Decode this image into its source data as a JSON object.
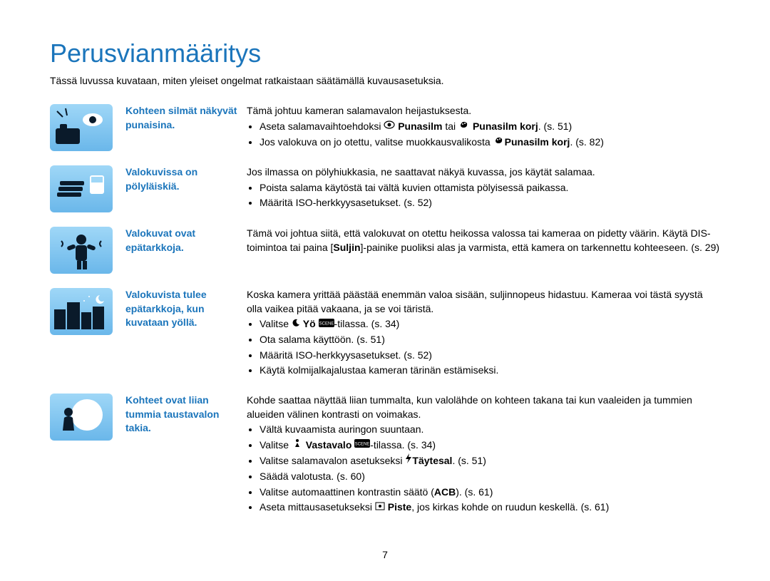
{
  "title": "Perusvianmääritys",
  "intro": "Tässä luvussa kuvataan, miten yleiset ongelmat ratkaistaan säätämällä kuvausasetuksia.",
  "page_number": "7",
  "colors": {
    "accent": "#1b75bb",
    "text": "#000000",
    "thumb_gradient_top": "#9fd7f7",
    "thumb_gradient_bottom": "#6ab7ea"
  },
  "rows": [
    {
      "problem": "Kohteen silmät näkyvät punaisina.",
      "lead": "Tämä johtuu kameran salamavalon heijastuksesta.",
      "bullets": [
        {
          "pre": "Aseta salamavaihtoehdoksi ",
          "icon": "eye",
          "mid": " ",
          "bold": "Punasilm",
          "post": " tai ",
          "icon2": "paint",
          "bold2": "Punasilm korj",
          "tail": ". (s. 51)"
        },
        {
          "pre": "Jos valokuva on jo otettu, valitse muokkausvalikosta ",
          "icon": "paint",
          "bold": "Punasilm korj",
          "post": ". (s. 82)"
        }
      ]
    },
    {
      "problem": "Valokuvissa on pölyläiskiä.",
      "lead": "Jos ilmassa on pölyhiukkasia, ne saattavat näkyä kuvassa, jos käytät salamaa.",
      "bullets": [
        {
          "pre": "Poista salama käytöstä tai vältä kuvien ottamista pölyisessä paikassa."
        },
        {
          "pre": "Määritä ISO-herkkyysasetukset. (s. 52)"
        }
      ]
    },
    {
      "problem": "Valokuvat ovat epätarkkoja.",
      "lead_parts": {
        "p1": "Tämä voi johtua siitä, että valokuvat on otettu heikossa valossa tai kameraa on pidetty väärin. Käytä DIS-toimintoa tai paina [",
        "bold": "Suljin",
        "p2": "]-painike puoliksi alas ja varmista, että kamera on tarkennettu kohteeseen. (s. 29)"
      },
      "bullets": []
    },
    {
      "problem": "Valokuvista tulee epätarkkoja, kun kuvataan yöllä.",
      "lead": "Koska kamera yrittää päästää enemmän valoa sisään, suljinnopeus hidastuu. Kameraa voi tästä syystä olla vaikea pitää vakaana, ja se voi täristä.",
      "bullets": [
        {
          "pre": "Valitse ",
          "icon": "moon",
          "mid": " ",
          "bold": "Yö",
          "post": " ",
          "icon2": "scene",
          "tail": "-tilassa. (s. 34)"
        },
        {
          "pre": "Ota salama käyttöön. (s. 51)"
        },
        {
          "pre": "Määritä ISO-herkkyysasetukset. (s. 52)"
        },
        {
          "pre": "Käytä kolmijalkajalustaa kameran tärinän estämiseksi."
        }
      ]
    },
    {
      "problem": "Kohteet ovat liian tummia taustavalon takia.",
      "lead": "Kohde saattaa näyttää liian tummalta, kun valolähde on kohteen takana tai kun vaaleiden ja tummien alueiden välinen kontrasti on voimakas.",
      "bullets": [
        {
          "pre": "Vältä kuvaamista auringon suuntaan."
        },
        {
          "pre": "Valitse ",
          "icon": "backlight",
          "mid": " ",
          "bold": "Vastavalo",
          "post": " ",
          "icon2": "scene",
          "tail": "-tilassa. (s. 34)"
        },
        {
          "pre": "Valitse salamavalon asetukseksi ",
          "icon": "flash",
          "bold": "Täytesal",
          "post": ". (s. 51)"
        },
        {
          "pre": "Säädä valotusta. (s. 60)"
        },
        {
          "pre": "Valitse automaattinen kontrastin säätö (",
          "bold": "ACB",
          "post": "). (s. 61)"
        },
        {
          "pre": "Aseta mittausasetukseksi ",
          "icon": "spot",
          "mid": " ",
          "bold": "Piste",
          "post": ", jos kirkas kohde on ruudun keskellä. (s. 61)"
        }
      ]
    }
  ]
}
